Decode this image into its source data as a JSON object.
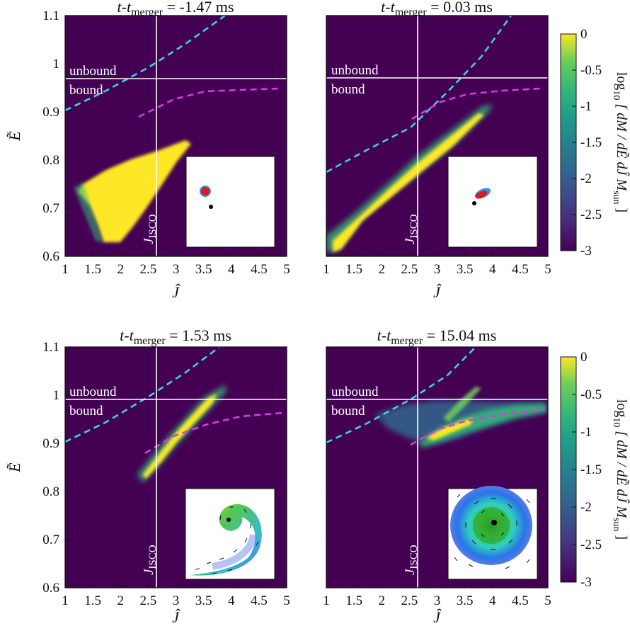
{
  "figure": {
    "panels": [
      {
        "title_pre": "t-t",
        "title_sub": "merger",
        "title_post": " = -1.47 ms"
      },
      {
        "title_pre": "t-t",
        "title_sub": "merger",
        "title_post": " = 0.03 ms"
      },
      {
        "title_pre": "t-t",
        "title_sub": "merger",
        "title_post": " = 1.53 ms"
      },
      {
        "title_pre": "t-t",
        "title_sub": "merger",
        "title_post": " = 15.04 ms"
      }
    ],
    "region_upper": "unbound",
    "region_lower": "bound",
    "isco_label_main": "J",
    "isco_label_sub": "ISCO",
    "xlabel": "Ĵ",
    "ylabel": "Ẽ",
    "colorbar_label": "log10 [ dM / dẼ dĴ Msun ]",
    "colorbar_label_parts": {
      "log": "log",
      "log_sub": "10",
      "body": " [ dM / dẼ dĴ M",
      "m_sub": "sun",
      "end": " ]"
    }
  },
  "chart_data": {
    "type": "heatmap",
    "x_ticks": [
      "1",
      "1.5",
      "2",
      "2.5",
      "3",
      "3.5",
      "4",
      "4.5",
      "5"
    ],
    "y_ticks": [
      "0.6",
      "0.7",
      "0.8",
      "0.9",
      "1",
      "1.1"
    ],
    "xlim": [
      1,
      5
    ],
    "ylim": [
      0.6,
      1.1
    ],
    "isco_J": 2.7,
    "unbound_E": 1.0,
    "colorbar": {
      "ticks": [
        "0",
        "-0.5",
        "-1",
        "-1.5",
        "-2",
        "-2.5",
        "-3"
      ],
      "range": [
        -3,
        0
      ],
      "colormap": "viridis"
    },
    "colors": {
      "background": "#440154",
      "cyan_curve": "#3fd0df",
      "magenta_curve": "#d93ae0",
      "high": "#fde725"
    },
    "series": [
      {
        "panel": "t-tmerger = -1.47 ms",
        "distribution": "compact fan spanning J 1.3-2.8, E 0.63-0.82"
      },
      {
        "panel": "t-tmerger = 0.03 ms",
        "distribution": "elongated band from J 1.0 E 0.61 to J 4.1 E 0.95"
      },
      {
        "panel": "t-tmerger = 1.53 ms",
        "distribution": "narrow band from J 2.3 E 0.88 to J 3.7 E 1.02"
      },
      {
        "panel": "t-tmerger = 15.04 ms",
        "distribution": "broad spread J 2.0-5.0, E 0.89-1.04"
      }
    ]
  }
}
